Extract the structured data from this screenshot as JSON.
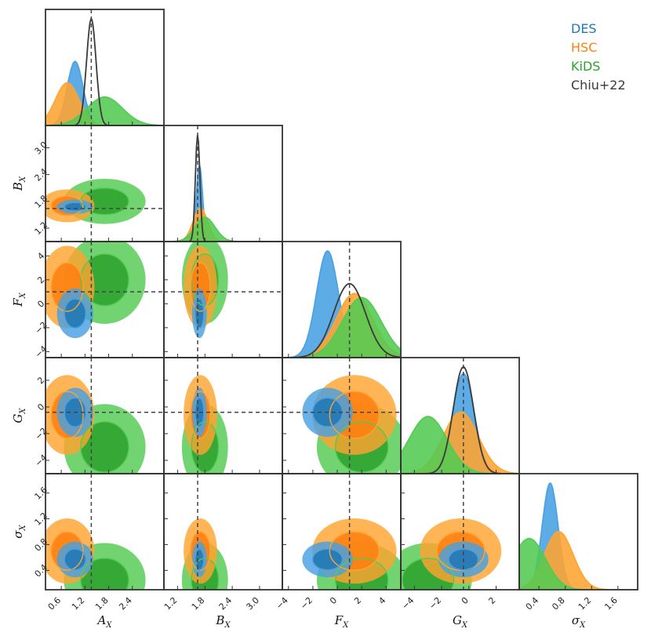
{
  "chart_data": {
    "type": "corner",
    "parameters": [
      {
        "symbol": "A",
        "sub": "X",
        "range": [
          0.2,
          3.2
        ],
        "ticks": [
          "0.6",
          "1.2",
          "1.8",
          "2.4"
        ],
        "tick_values": [
          0.6,
          1.2,
          1.8,
          2.4
        ],
        "truth": 1.36
      },
      {
        "symbol": "B",
        "sub": "X",
        "range": [
          0.9,
          3.5
        ],
        "ticks": [
          "1.2",
          "1.8",
          "2.4",
          "3.0"
        ],
        "tick_values": [
          1.2,
          1.8,
          2.4,
          3.0
        ],
        "truth": 1.64
      },
      {
        "symbol": "F",
        "sub": "X",
        "range": [
          -4.5,
          5.2
        ],
        "ticks": [
          "−4",
          "−2",
          "0",
          "2",
          "4"
        ],
        "tick_values": [
          -4,
          -2,
          0,
          2,
          4
        ],
        "truth": 1.0
      },
      {
        "symbol": "G",
        "sub": "X",
        "range": [
          -5.0,
          3.7
        ],
        "ticks": [
          "−4",
          "−2",
          "0",
          "2"
        ],
        "tick_values": [
          -4,
          -2,
          0,
          2
        ],
        "truth": -0.4
      },
      {
        "symbol": "σ",
        "sub": "X",
        "range": [
          0.1,
          1.9
        ],
        "ticks": [
          "0.4",
          "0.8",
          "1.2",
          "1.6"
        ],
        "tick_values": [
          0.4,
          0.8,
          1.2,
          1.6
        ],
        "truth": null
      }
    ],
    "series": [
      {
        "name": "DES",
        "color": "#1f77b4",
        "fill": "#48a0e2",
        "mean": [
          0.95,
          1.68,
          -0.8,
          -0.4,
          0.57
        ],
        "sd": [
          0.2,
          0.07,
          0.9,
          0.8,
          0.12
        ]
      },
      {
        "name": "HSC",
        "color": "#ff7f0e",
        "fill": "#ffa431",
        "mean": [
          0.75,
          1.7,
          1.4,
          -0.6,
          0.7
        ],
        "sd": [
          0.3,
          0.16,
          1.5,
          1.3,
          0.22
        ]
      },
      {
        "name": "KiDS",
        "color": "#2ca02c",
        "fill": "#52cb52",
        "mean": [
          1.7,
          1.8,
          2.0,
          -3.0,
          0.25
        ],
        "sd": [
          0.45,
          0.22,
          1.6,
          1.4,
          0.25
        ]
      },
      {
        "name": "Chiu+22",
        "color": "#3a3a3a",
        "mean": [
          1.36,
          1.64,
          1.0,
          -0.4
        ],
        "sd": [
          0.12,
          0.05,
          1.3,
          0.75
        ]
      }
    ],
    "legend": {
      "position": "top-right",
      "entries": [
        "DES",
        "HSC",
        "KiDS",
        "Chiu+22"
      ]
    },
    "truth_line_style": "dashed",
    "grid": false
  }
}
